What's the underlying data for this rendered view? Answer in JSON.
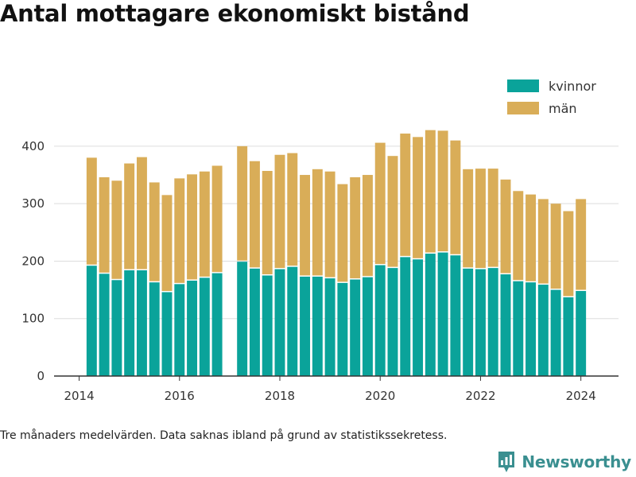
{
  "title": "Antal mottagare ekonomiskt bistånd",
  "note": "Tre månaders medelvärden. Data saknas ibland på grund av statistikssekretess.",
  "brand": {
    "name": "Newsworthy",
    "logo_icon": "bar-chart-pin-icon"
  },
  "colors": {
    "kvinnor": "#0aa39a",
    "man": "#d9ad58",
    "grid": "#dddddd",
    "axis": "#333333",
    "brand": "#3a8f90"
  },
  "chart_data": {
    "type": "bar",
    "stacked": true,
    "title": "Antal mottagare ekonomiskt bistånd",
    "x_ticks": [
      "2014",
      "2016",
      "2018",
      "2020",
      "2022",
      "2024"
    ],
    "y_ticks": [
      "0",
      "100",
      "200",
      "300",
      "400"
    ],
    "ylim": [
      0,
      440
    ],
    "xlim": [
      2013.5,
      2024.75
    ],
    "grid": "horizontal",
    "legend_position": "top-right",
    "x": [
      2014.25,
      2014.5,
      2014.75,
      2015.0,
      2015.25,
      2015.5,
      2015.75,
      2016.0,
      2016.25,
      2016.5,
      2016.75,
      2017.0,
      2017.25,
      2017.5,
      2017.75,
      2018.0,
      2018.25,
      2018.5,
      2018.75,
      2019.0,
      2019.25,
      2019.5,
      2019.75,
      2020.0,
      2020.25,
      2020.5,
      2020.75,
      2021.0,
      2021.25,
      2021.5,
      2021.75,
      2022.0,
      2022.25,
      2022.5,
      2022.75,
      2023.0,
      2023.25,
      2023.5,
      2023.75,
      2024.0
    ],
    "series": [
      {
        "name": "kvinnor",
        "values": [
          192,
          178,
          167,
          184,
          184,
          163,
          146,
          160,
          166,
          171,
          179,
          null,
          199,
          187,
          175,
          186,
          190,
          173,
          173,
          170,
          162,
          168,
          172,
          193,
          188,
          207,
          203,
          213,
          215,
          210,
          187,
          186,
          188,
          177,
          165,
          163,
          159,
          150,
          137,
          148
        ]
      },
      {
        "name": "män",
        "values": [
          188,
          168,
          173,
          186,
          197,
          174,
          169,
          184,
          185,
          185,
          187,
          null,
          201,
          187,
          182,
          199,
          198,
          177,
          187,
          186,
          172,
          178,
          178,
          213,
          195,
          215,
          213,
          215,
          212,
          200,
          173,
          175,
          173,
          165,
          157,
          153,
          149,
          150,
          150,
          160
        ]
      }
    ]
  }
}
